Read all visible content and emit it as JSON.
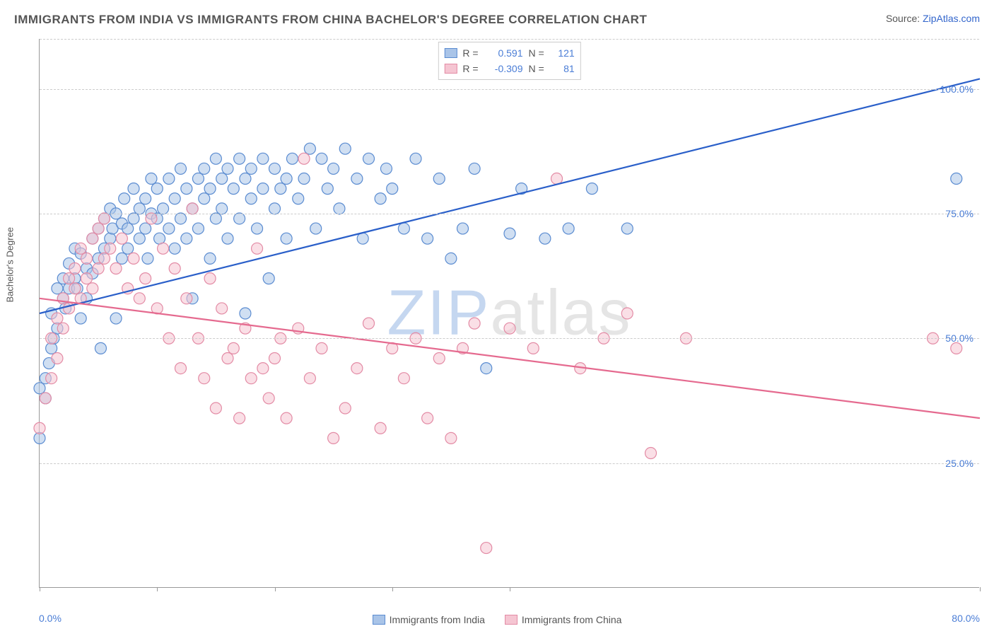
{
  "title": "IMMIGRANTS FROM INDIA VS IMMIGRANTS FROM CHINA BACHELOR'S DEGREE CORRELATION CHART",
  "source_label": "Source: ",
  "source_link": "ZipAtlas.com",
  "y_axis_label": "Bachelor's Degree",
  "watermark": {
    "z": "ZIP",
    "rest": "atlas"
  },
  "chart": {
    "type": "scatter",
    "xlim": [
      0,
      80
    ],
    "ylim": [
      0,
      110
    ],
    "x_ticks": [
      0,
      10,
      20,
      30,
      40,
      80
    ],
    "x_tick_labels": {
      "0": "0.0%",
      "80": "80.0%"
    },
    "y_ticks": [
      25,
      50,
      75,
      100
    ],
    "y_tick_labels": {
      "25": "25.0%",
      "50": "50.0%",
      "75": "75.0%",
      "100": "100.0%"
    },
    "grid_color": "#cccccc",
    "background_color": "#ffffff",
    "marker_radius": 8,
    "marker_opacity": 0.55,
    "marker_stroke_width": 1.2,
    "line_width": 2.2
  },
  "series": [
    {
      "id": "india",
      "label": "Immigrants from India",
      "fill_color": "#a9c4e8",
      "stroke_color": "#5b8cd1",
      "line_color": "#2a5fc9",
      "R": "0.591",
      "N": "121",
      "trend": {
        "x1": 0,
        "y1": 55,
        "x2": 80,
        "y2": 102
      },
      "points": [
        [
          0,
          30
        ],
        [
          0,
          40
        ],
        [
          0.5,
          42
        ],
        [
          0.5,
          38
        ],
        [
          0.8,
          45
        ],
        [
          1,
          48
        ],
        [
          1,
          55
        ],
        [
          1.2,
          50
        ],
        [
          1.5,
          52
        ],
        [
          1.5,
          60
        ],
        [
          2,
          58
        ],
        [
          2,
          62
        ],
        [
          2.2,
          56
        ],
        [
          2.5,
          60
        ],
        [
          2.5,
          65
        ],
        [
          3,
          62
        ],
        [
          3,
          68
        ],
        [
          3.2,
          60
        ],
        [
          3.5,
          54
        ],
        [
          3.5,
          67
        ],
        [
          4,
          58
        ],
        [
          4,
          64
        ],
        [
          4.5,
          70
        ],
        [
          4.5,
          63
        ],
        [
          5,
          72
        ],
        [
          5,
          66
        ],
        [
          5.2,
          48
        ],
        [
          5.5,
          68
        ],
        [
          5.5,
          74
        ],
        [
          6,
          76
        ],
        [
          6,
          70
        ],
        [
          6.2,
          72
        ],
        [
          6.5,
          54
        ],
        [
          6.5,
          75
        ],
        [
          7,
          66
        ],
        [
          7,
          73
        ],
        [
          7.2,
          78
        ],
        [
          7.5,
          72
        ],
        [
          7.5,
          68
        ],
        [
          8,
          74
        ],
        [
          8,
          80
        ],
        [
          8.5,
          76
        ],
        [
          8.5,
          70
        ],
        [
          9,
          78
        ],
        [
          9,
          72
        ],
        [
          9.2,
          66
        ],
        [
          9.5,
          75
        ],
        [
          9.5,
          82
        ],
        [
          10,
          74
        ],
        [
          10,
          80
        ],
        [
          10.2,
          70
        ],
        [
          10.5,
          76
        ],
        [
          11,
          82
        ],
        [
          11,
          72
        ],
        [
          11.5,
          78
        ],
        [
          11.5,
          68
        ],
        [
          12,
          74
        ],
        [
          12,
          84
        ],
        [
          12.5,
          70
        ],
        [
          12.5,
          80
        ],
        [
          13,
          58
        ],
        [
          13,
          76
        ],
        [
          13.5,
          82
        ],
        [
          13.5,
          72
        ],
        [
          14,
          78
        ],
        [
          14,
          84
        ],
        [
          14.5,
          66
        ],
        [
          14.5,
          80
        ],
        [
          15,
          86
        ],
        [
          15,
          74
        ],
        [
          15.5,
          82
        ],
        [
          15.5,
          76
        ],
        [
          16,
          84
        ],
        [
          16,
          70
        ],
        [
          16.5,
          80
        ],
        [
          17,
          86
        ],
        [
          17,
          74
        ],
        [
          17.5,
          82
        ],
        [
          17.5,
          55
        ],
        [
          18,
          78
        ],
        [
          18,
          84
        ],
        [
          18.5,
          72
        ],
        [
          19,
          80
        ],
        [
          19,
          86
        ],
        [
          19.5,
          62
        ],
        [
          20,
          84
        ],
        [
          20,
          76
        ],
        [
          20.5,
          80
        ],
        [
          21,
          82
        ],
        [
          21,
          70
        ],
        [
          21.5,
          86
        ],
        [
          22,
          78
        ],
        [
          22.5,
          82
        ],
        [
          23,
          88
        ],
        [
          23.5,
          72
        ],
        [
          24,
          86
        ],
        [
          24.5,
          80
        ],
        [
          25,
          84
        ],
        [
          25.5,
          76
        ],
        [
          26,
          88
        ],
        [
          27,
          82
        ],
        [
          27.5,
          70
        ],
        [
          28,
          86
        ],
        [
          29,
          78
        ],
        [
          29.5,
          84
        ],
        [
          30,
          80
        ],
        [
          31,
          72
        ],
        [
          32,
          86
        ],
        [
          33,
          70
        ],
        [
          34,
          82
        ],
        [
          35,
          66
        ],
        [
          36,
          72
        ],
        [
          37,
          84
        ],
        [
          38,
          44
        ],
        [
          40,
          71
        ],
        [
          41,
          80
        ],
        [
          43,
          70
        ],
        [
          45,
          72
        ],
        [
          47,
          80
        ],
        [
          50,
          72
        ],
        [
          78,
          82
        ]
      ]
    },
    {
      "id": "china",
      "label": "Immigrants from China",
      "fill_color": "#f5c5d2",
      "stroke_color": "#e38ba5",
      "line_color": "#e56a8f",
      "R": "-0.309",
      "N": "81",
      "trend": {
        "x1": 0,
        "y1": 58,
        "x2": 80,
        "y2": 34
      },
      "points": [
        [
          0,
          32
        ],
        [
          0.5,
          38
        ],
        [
          1,
          42
        ],
        [
          1,
          50
        ],
        [
          1.5,
          46
        ],
        [
          1.5,
          54
        ],
        [
          2,
          52
        ],
        [
          2,
          58
        ],
        [
          2.5,
          56
        ],
        [
          2.5,
          62
        ],
        [
          3,
          60
        ],
        [
          3,
          64
        ],
        [
          3.5,
          58
        ],
        [
          3.5,
          68
        ],
        [
          4,
          62
        ],
        [
          4,
          66
        ],
        [
          4.5,
          60
        ],
        [
          4.5,
          70
        ],
        [
          5,
          64
        ],
        [
          5,
          72
        ],
        [
          5.5,
          66
        ],
        [
          5.5,
          74
        ],
        [
          6,
          68
        ],
        [
          6.5,
          64
        ],
        [
          7,
          70
        ],
        [
          7.5,
          60
        ],
        [
          8,
          66
        ],
        [
          8.5,
          58
        ],
        [
          9,
          62
        ],
        [
          9.5,
          74
        ],
        [
          10,
          56
        ],
        [
          10.5,
          68
        ],
        [
          11,
          50
        ],
        [
          11.5,
          64
        ],
        [
          12,
          44
        ],
        [
          12.5,
          58
        ],
        [
          13,
          76
        ],
        [
          13.5,
          50
        ],
        [
          14,
          42
        ],
        [
          14.5,
          62
        ],
        [
          15,
          36
        ],
        [
          15.5,
          56
        ],
        [
          16,
          46
        ],
        [
          16.5,
          48
        ],
        [
          17,
          34
        ],
        [
          17.5,
          52
        ],
        [
          18,
          42
        ],
        [
          18.5,
          68
        ],
        [
          19,
          44
        ],
        [
          19.5,
          38
        ],
        [
          20,
          46
        ],
        [
          20.5,
          50
        ],
        [
          21,
          34
        ],
        [
          22,
          52
        ],
        [
          22.5,
          86
        ],
        [
          23,
          42
        ],
        [
          24,
          48
        ],
        [
          25,
          30
        ],
        [
          26,
          36
        ],
        [
          27,
          44
        ],
        [
          28,
          53
        ],
        [
          29,
          32
        ],
        [
          30,
          48
        ],
        [
          31,
          42
        ],
        [
          32,
          50
        ],
        [
          33,
          34
        ],
        [
          34,
          46
        ],
        [
          35,
          30
        ],
        [
          36,
          48
        ],
        [
          37,
          53
        ],
        [
          38,
          8
        ],
        [
          40,
          52
        ],
        [
          42,
          48
        ],
        [
          44,
          82
        ],
        [
          46,
          44
        ],
        [
          48,
          50
        ],
        [
          50,
          55
        ],
        [
          52,
          27
        ],
        [
          55,
          50
        ],
        [
          76,
          50
        ],
        [
          78,
          48
        ]
      ]
    }
  ],
  "legend_top_labels": {
    "R": "R =",
    "N": "N ="
  }
}
